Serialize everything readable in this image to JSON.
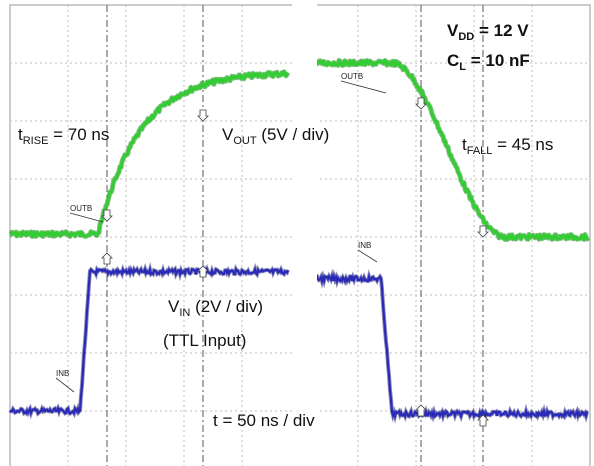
{
  "chart_data": {
    "type": "line",
    "title": "",
    "grid": true,
    "timebase": "t = 50 ns / div",
    "conditions": {
      "vdd": {
        "sym": "V",
        "sub": "DD",
        "rest": " = 12 V"
      },
      "cl": {
        "sym": "C",
        "sub": "L",
        "rest": " = 10 nF"
      }
    },
    "panels": [
      {
        "name": "rising",
        "measurement": {
          "sym": "t",
          "sub": "RISE",
          "rest": " = 70 ns"
        },
        "output": {
          "label": {
            "sym": "V",
            "sub": "OUT",
            "rest": " (5V / div)"
          },
          "tag": "OUTB",
          "color": "#33cc33",
          "low_div": 3.95,
          "high_div": 1.15,
          "edge": "rise"
        },
        "input": {
          "label": {
            "sym": "V",
            "sub": "IN",
            "rest": " (2V / div)"
          },
          "sublabel": "(TTL Input)",
          "tag": "INB",
          "color": "#2a2ab8",
          "low_div": 7.0,
          "high_div": 4.6,
          "edge": "rise"
        }
      },
      {
        "name": "falling",
        "measurement": {
          "sym": "t",
          "sub": "FALL",
          "rest": " = 45 ns"
        },
        "output": {
          "tag": "OUTB",
          "color": "#33cc33",
          "low_div": 4.0,
          "high_div": 1.0,
          "edge": "fall"
        },
        "input": {
          "tag": "INB",
          "color": "#2a2ab8",
          "low_div": 7.05,
          "high_div": 4.72,
          "edge": "fall"
        }
      }
    ]
  }
}
